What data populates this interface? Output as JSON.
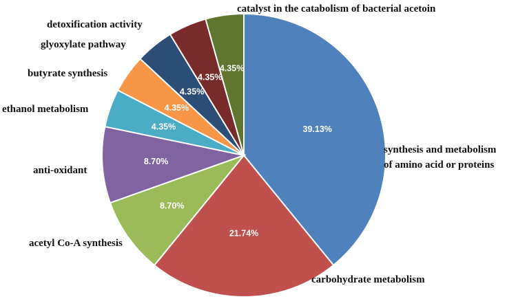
{
  "chart_data": {
    "type": "pie",
    "title": "",
    "slices": [
      {
        "label": "synthesis and metabolism of amino acid or proteins",
        "label_lines": [
          "synthesis and metabolism",
          "of amino acid or proteins"
        ],
        "value": 39.13,
        "value_label": "39.13%",
        "color": "#4f81bd"
      },
      {
        "label": "carbohydrate metabolism",
        "label_lines": [
          "carbohydrate metabolism"
        ],
        "value": 21.74,
        "value_label": "21.74%",
        "color": "#c0504d"
      },
      {
        "label": "acetyl Co-A synthesis",
        "label_lines": [
          "acetyl Co-A synthesis"
        ],
        "value": 8.7,
        "value_label": "8.70%",
        "color": "#9bbb59"
      },
      {
        "label": "anti-oxidant",
        "label_lines": [
          "anti-oxidant"
        ],
        "value": 8.7,
        "value_label": "8.70%",
        "color": "#8064a2"
      },
      {
        "label": "ethanol metabolism",
        "label_lines": [
          "ethanol metabolism"
        ],
        "value": 4.35,
        "value_label": "4.35%",
        "color": "#4bacc6"
      },
      {
        "label": "butyrate synthesis",
        "label_lines": [
          "butyrate synthesis"
        ],
        "value": 4.35,
        "value_label": "4.35%",
        "color": "#f79646"
      },
      {
        "label": "glyoxylate pathway",
        "label_lines": [
          "glyoxylate pathway"
        ],
        "value": 4.35,
        "value_label": "4.35%",
        "color": "#2c4d75"
      },
      {
        "label": "detoxification activity",
        "label_lines": [
          "detoxification activity"
        ],
        "value": 4.35,
        "value_label": "4.35%",
        "color": "#772c2a"
      },
      {
        "label": "catalyst in the catabolism of bacterial acetoin",
        "label_lines": [
          "catalyst in the catabolism of bacterial acetoin"
        ],
        "value": 4.35,
        "value_label": "4.35%",
        "color": "#5f7530"
      }
    ],
    "start_angle": "12 o'clock",
    "direction": "clockwise",
    "legend": "none"
  }
}
